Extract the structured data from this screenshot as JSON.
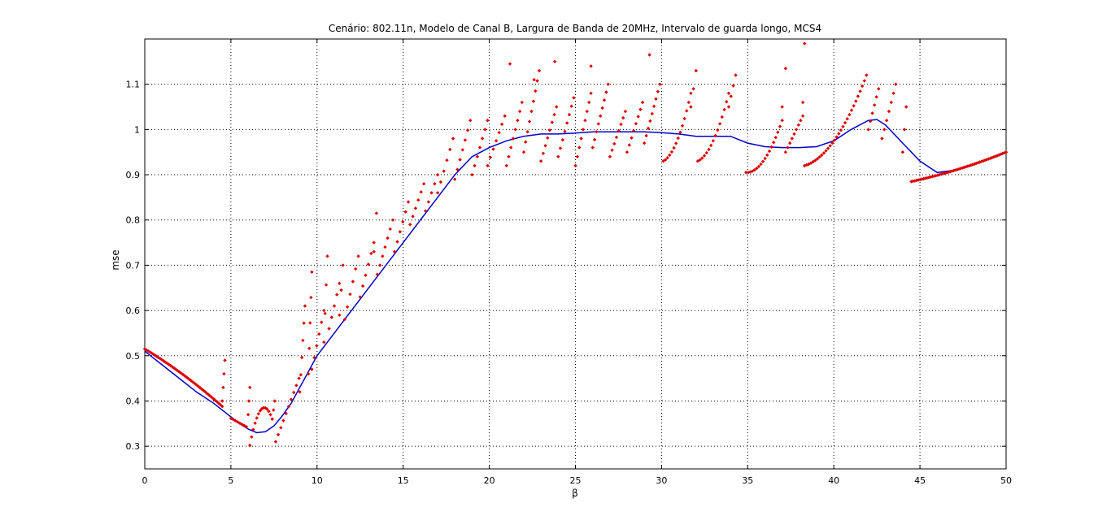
{
  "chart_data": {
    "type": "scatter",
    "title": "Cenário: 802.11n, Modelo de Canal B, Largura de Banda de 20MHz, Intervalo de guarda longo, MCS4",
    "xlabel": "β",
    "ylabel": "mse",
    "xlim": [
      0,
      50
    ],
    "ylim": [
      0.25,
      1.2
    ],
    "xticks": [
      0,
      5,
      10,
      15,
      20,
      25,
      30,
      35,
      40,
      45,
      50
    ],
    "yticks": [
      0.3,
      0.4,
      0.5,
      0.6,
      0.7,
      0.8,
      0.9,
      1,
      1.1
    ],
    "xtick_labels": [
      "0",
      "5",
      "10",
      "15",
      "20",
      "25",
      "30",
      "35",
      "40",
      "45",
      "50"
    ],
    "ytick_labels": [
      "0.3",
      "0.4",
      "0.5",
      "0.6",
      "0.7",
      "0.8",
      "0.9",
      "1",
      "1.1"
    ],
    "grid": true,
    "series": [
      {
        "type": "line",
        "color": "#0000cc",
        "x": [
          0,
          1,
          2,
          3,
          4,
          5,
          5.5,
          6,
          6.5,
          7,
          7.5,
          8,
          8.5,
          9,
          10,
          11,
          12,
          13,
          14,
          15,
          16,
          17,
          18,
          19,
          20,
          21,
          22,
          23,
          24,
          25,
          26,
          27,
          28,
          29,
          30,
          31,
          32,
          33,
          34,
          35,
          36,
          37,
          38,
          39,
          40,
          41,
          42,
          42.5,
          43,
          44,
          45,
          46,
          47,
          48,
          49,
          50
        ],
        "y": [
          0.51,
          0.48,
          0.45,
          0.42,
          0.395,
          0.365,
          0.35,
          0.338,
          0.33,
          0.332,
          0.345,
          0.368,
          0.395,
          0.43,
          0.5,
          0.55,
          0.6,
          0.65,
          0.7,
          0.75,
          0.8,
          0.85,
          0.9,
          0.94,
          0.96,
          0.975,
          0.985,
          0.99,
          0.99,
          0.992,
          0.995,
          0.995,
          0.995,
          0.995,
          0.993,
          0.99,
          0.985,
          0.985,
          0.985,
          0.97,
          0.962,
          0.96,
          0.96,
          0.962,
          0.975,
          1.0,
          1.02,
          1.022,
          1.01,
          0.97,
          0.93,
          0.905,
          0.91,
          0.92,
          0.935,
          0.95
        ]
      },
      {
        "type": "scatter",
        "color": "#dd0000",
        "segments": [
          {
            "x0": 0,
            "x1": 4.5,
            "y0": 0.515,
            "y1": 0.388,
            "n": 46,
            "curve": 0.006
          },
          {
            "x0": 4.5,
            "x1": 4.65,
            "y0": 0.4,
            "y1": 0.49,
            "n": 4
          },
          {
            "x0": 5.0,
            "x1": 5.9,
            "y0": 0.362,
            "y1": 0.343,
            "n": 8
          },
          {
            "x0": 6.0,
            "x1": 6.1,
            "y0": 0.37,
            "y1": 0.43,
            "n": 3
          },
          {
            "x0": 6.1,
            "x1": 7.4,
            "y0": 0.302,
            "y1": 0.36,
            "n": 14,
            "curve": -0.05
          },
          {
            "x0": 7.4,
            "x1": 7.55,
            "y0": 0.36,
            "y1": 0.4,
            "n": 3
          },
          {
            "x0": 7.6,
            "x1": 8.95,
            "y0": 0.31,
            "y1": 0.45,
            "n": 10
          },
          {
            "x0": 9.0,
            "x1": 9.3,
            "y0": 0.42,
            "y1": 0.61,
            "n": 6
          },
          {
            "x0": 9.5,
            "x1": 9.7,
            "y0": 0.46,
            "y1": 0.685,
            "n": 5
          },
          {
            "x0": 9.7,
            "x1": 10.4,
            "y0": 0.47,
            "y1": 0.6,
            "n": 6
          },
          {
            "x0": 10.4,
            "x1": 10.6,
            "y0": 0.53,
            "y1": 0.72,
            "n": 4
          },
          {
            "x0": 10.7,
            "x1": 11.3,
            "y0": 0.56,
            "y1": 0.66,
            "n": 5
          },
          {
            "x0": 11.3,
            "x1": 11.5,
            "y0": 0.59,
            "y1": 0.7,
            "n": 3
          },
          {
            "x0": 11.6,
            "x1": 12.4,
            "y0": 0.58,
            "y1": 0.72,
            "n": 6
          },
          {
            "x0": 12.5,
            "x1": 13.3,
            "y0": 0.63,
            "y1": 0.75,
            "n": 6
          },
          {
            "x0": 13.3,
            "x1": 13.45,
            "y0": 0.73,
            "y1": 0.815,
            "n": 2
          },
          {
            "x0": 13.5,
            "x1": 14.4,
            "y0": 0.68,
            "y1": 0.8,
            "n": 7
          },
          {
            "x0": 14.5,
            "x1": 15.3,
            "y0": 0.73,
            "y1": 0.84,
            "n": 6
          },
          {
            "x0": 15.4,
            "x1": 16.2,
            "y0": 0.79,
            "y1": 0.88,
            "n": 6
          },
          {
            "x0": 16.3,
            "x1": 17.0,
            "y0": 0.82,
            "y1": 0.9,
            "n": 5
          },
          {
            "x0": 17.0,
            "x1": 17.9,
            "y0": 0.86,
            "y1": 0.98,
            "n": 6
          },
          {
            "x0": 18.0,
            "x1": 18.9,
            "y0": 0.89,
            "y1": 1.02,
            "n": 7
          },
          {
            "x0": 19.0,
            "x1": 19.9,
            "y0": 0.9,
            "y1": 1.02,
            "n": 7
          },
          {
            "x0": 19.9,
            "x1": 20.9,
            "y0": 0.92,
            "y1": 1.03,
            "n": 7
          },
          {
            "x0": 21.0,
            "x1": 21.9,
            "y0": 0.92,
            "y1": 1.06,
            "n": 8
          },
          {
            "x0": 21.2,
            "x1": 21.2,
            "y0": 1.145,
            "y1": 1.145,
            "n": 1
          },
          {
            "x0": 22.0,
            "x1": 22.9,
            "y0": 0.95,
            "y1": 1.13,
            "n": 9
          },
          {
            "x0": 22.6,
            "x1": 22.6,
            "y0": 1.11,
            "y1": 1.11,
            "n": 1
          },
          {
            "x0": 23.0,
            "x1": 23.9,
            "y0": 0.93,
            "y1": 1.05,
            "n": 8
          },
          {
            "x0": 23.8,
            "x1": 23.8,
            "y0": 1.15,
            "y1": 1.15,
            "n": 1
          },
          {
            "x0": 24.0,
            "x1": 24.9,
            "y0": 0.94,
            "y1": 1.07,
            "n": 8
          },
          {
            "x0": 25.0,
            "x1": 25.9,
            "y0": 0.92,
            "y1": 1.08,
            "n": 9
          },
          {
            "x0": 25.9,
            "x1": 25.9,
            "y0": 1.14,
            "y1": 1.14,
            "n": 1
          },
          {
            "x0": 26.0,
            "x1": 26.9,
            "y0": 0.96,
            "y1": 1.1,
            "n": 9
          },
          {
            "x0": 27.0,
            "x1": 27.9,
            "y0": 0.94,
            "y1": 1.04,
            "n": 8
          },
          {
            "x0": 28.0,
            "x1": 28.9,
            "y0": 0.95,
            "y1": 1.06,
            "n": 8
          },
          {
            "x0": 29.0,
            "x1": 29.9,
            "y0": 0.97,
            "y1": 1.1,
            "n": 9
          },
          {
            "x0": 29.3,
            "x1": 29.3,
            "y0": 1.165,
            "y1": 1.165,
            "n": 1
          },
          {
            "x0": 30.1,
            "x1": 31.7,
            "y0": 0.93,
            "y1": 1.08,
            "n": 14,
            "curve": 0.03
          },
          {
            "x0": 31.7,
            "x1": 32.0,
            "y0": 1.05,
            "y1": 1.13,
            "n": 3
          },
          {
            "x0": 32.1,
            "x1": 33.9,
            "y0": 0.93,
            "y1": 1.08,
            "n": 15,
            "curve": 0.03
          },
          {
            "x0": 33.9,
            "x1": 34.3,
            "y0": 1.05,
            "y1": 1.12,
            "n": 4
          },
          {
            "x0": 34.9,
            "x1": 37.0,
            "y0": 0.905,
            "y1": 1.02,
            "n": 18,
            "curve": 0.03
          },
          {
            "x0": 37.0,
            "x1": 37.2,
            "y0": 1.05,
            "y1": 1.135,
            "n": 2
          },
          {
            "x0": 37.2,
            "x1": 38.2,
            "y0": 0.95,
            "y1": 1.03,
            "n": 9
          },
          {
            "x0": 38.2,
            "x1": 38.3,
            "y0": 1.06,
            "y1": 1.19,
            "n": 2
          },
          {
            "x0": 38.3,
            "x1": 41.9,
            "y0": 0.92,
            "y1": 1.12,
            "n": 30,
            "curve": 0.04
          },
          {
            "x0": 42.0,
            "x1": 42.6,
            "y0": 1.0,
            "y1": 1.09,
            "n": 6
          },
          {
            "x0": 42.8,
            "x1": 43.6,
            "y0": 0.98,
            "y1": 1.1,
            "n": 7
          },
          {
            "x0": 44.0,
            "x1": 44.2,
            "y0": 0.95,
            "y1": 1.05,
            "n": 3
          },
          {
            "x0": 44.5,
            "x1": 50,
            "y0": 0.885,
            "y1": 0.95,
            "n": 55,
            "curve": 0.005
          }
        ]
      }
    ]
  }
}
